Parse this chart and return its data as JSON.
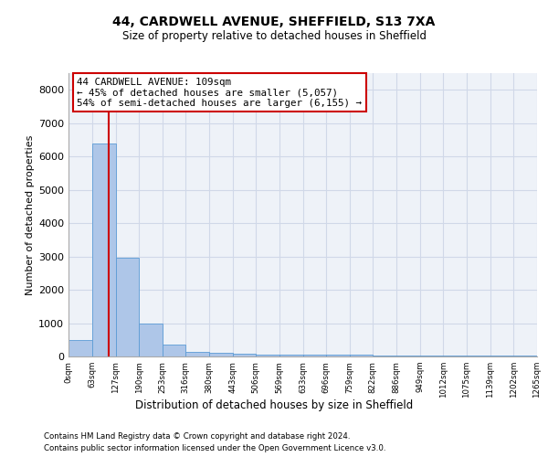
{
  "title1": "44, CARDWELL AVENUE, SHEFFIELD, S13 7XA",
  "title2": "Size of property relative to detached houses in Sheffield",
  "xlabel": "Distribution of detached houses by size in Sheffield",
  "ylabel": "Number of detached properties",
  "bin_edges": [
    0,
    63,
    127,
    190,
    253,
    316,
    380,
    443,
    506,
    569,
    633,
    696,
    759,
    822,
    886,
    949,
    1012,
    1075,
    1139,
    1202,
    1265
  ],
  "bar_heights": [
    500,
    6400,
    2950,
    1000,
    350,
    150,
    100,
    80,
    60,
    55,
    50,
    50,
    45,
    40,
    35,
    30,
    28,
    25,
    22,
    20
  ],
  "bar_color": "#aec6e8",
  "bar_edge_color": "#5b9bd5",
  "grid_color": "#d0d8e8",
  "bg_color": "#eef2f8",
  "property_line_x": 109,
  "property_line_color": "#cc0000",
  "annotation_line1": "44 CARDWELL AVENUE: 109sqm",
  "annotation_line2": "← 45% of detached houses are smaller (5,057)",
  "annotation_line3": "54% of semi-detached houses are larger (6,155) →",
  "annotation_box_color": "#cc0000",
  "footnote1": "Contains HM Land Registry data © Crown copyright and database right 2024.",
  "footnote2": "Contains public sector information licensed under the Open Government Licence v3.0.",
  "yticks": [
    0,
    1000,
    2000,
    3000,
    4000,
    5000,
    6000,
    7000,
    8000
  ],
  "ylim": [
    0,
    8500
  ]
}
